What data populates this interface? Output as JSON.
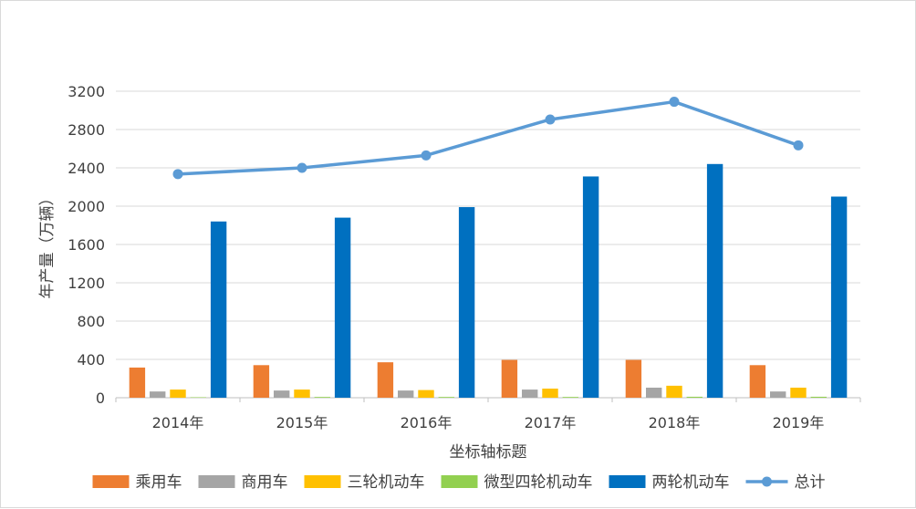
{
  "chart_data": {
    "type": "bar",
    "categories": [
      "2014年",
      "2015年",
      "2016年",
      "2017年",
      "2018年",
      "2019年"
    ],
    "series": [
      {
        "name": "乘用车",
        "type": "bar",
        "color": "#ED7D31",
        "values": [
          315,
          340,
          370,
          395,
          395,
          340
        ]
      },
      {
        "name": "商用车",
        "type": "bar",
        "color": "#A5A5A5",
        "values": [
          65,
          75,
          75,
          85,
          105,
          65
        ]
      },
      {
        "name": "三轮机动车",
        "type": "bar",
        "color": "#FFC000",
        "values": [
          85,
          85,
          80,
          95,
          125,
          105
        ]
      },
      {
        "name": "微型四轮机动车",
        "type": "bar",
        "color": "#92D050",
        "values": [
          5,
          8,
          8,
          8,
          10,
          10
        ]
      },
      {
        "name": "两轮机动车",
        "type": "bar",
        "color": "#0070C0",
        "values": [
          1840,
          1880,
          1990,
          2310,
          2440,
          2100
        ]
      },
      {
        "name": "总计",
        "type": "line",
        "color": "#5B9BD5",
        "values": [
          2335,
          2400,
          2530,
          2905,
          3090,
          2635
        ]
      }
    ],
    "title": "",
    "xlabel": "坐标轴标题",
    "ylabel": "年产量（万辆）",
    "ylim": [
      0,
      3200
    ],
    "yticks": [
      0,
      400,
      800,
      1200,
      1600,
      2000,
      2400,
      2800,
      3200
    ],
    "grid": true,
    "legend_position": "bottom"
  }
}
